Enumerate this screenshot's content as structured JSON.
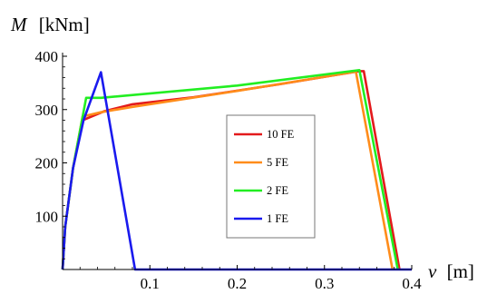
{
  "chart_data": {
    "type": "line",
    "xlabel_symbol": "v",
    "xlabel_unit": "[m]",
    "ylabel_symbol": "M",
    "ylabel_unit": "[kNm]",
    "xlim": [
      0,
      0.4
    ],
    "ylim": [
      0,
      400
    ],
    "x_ticks": [
      {
        "value": 0.1,
        "label": "0.1"
      },
      {
        "value": 0.2,
        "label": "0.2"
      },
      {
        "value": 0.3,
        "label": "0.3"
      },
      {
        "value": 0.4,
        "label": "0.4"
      }
    ],
    "y_ticks": [
      {
        "value": 100,
        "label": "100"
      },
      {
        "value": 200,
        "label": "200"
      },
      {
        "value": 300,
        "label": "300"
      },
      {
        "value": 400,
        "label": "400"
      }
    ],
    "grid": false,
    "legend_position": "center-right",
    "series": [
      {
        "name": "10 FE",
        "color": "#e31a1c",
        "points": [
          [
            0,
            0
          ],
          [
            0.003,
            80
          ],
          [
            0.012,
            190
          ],
          [
            0.023,
            280
          ],
          [
            0.048,
            297
          ],
          [
            0.08,
            310
          ],
          [
            0.15,
            323
          ],
          [
            0.25,
            348
          ],
          [
            0.34,
            372
          ],
          [
            0.345,
            372
          ],
          [
            0.386,
            0
          ]
        ]
      },
      {
        "name": "5 FE",
        "color": "#ff8c1a",
        "points": [
          [
            0,
            0
          ],
          [
            0.003,
            80
          ],
          [
            0.012,
            190
          ],
          [
            0.023,
            287
          ],
          [
            0.044,
            295
          ],
          [
            0.08,
            305
          ],
          [
            0.2,
            335
          ],
          [
            0.336,
            371
          ],
          [
            0.378,
            0
          ]
        ]
      },
      {
        "name": "2 FE",
        "color": "#22ee22",
        "points": [
          [
            0,
            0
          ],
          [
            0.003,
            80
          ],
          [
            0.012,
            190
          ],
          [
            0.027,
            322
          ],
          [
            0.044,
            322
          ],
          [
            0.2,
            345
          ],
          [
            0.34,
            374
          ],
          [
            0.384,
            0
          ]
        ]
      },
      {
        "name": "1 FE",
        "color": "#1a1aee",
        "points": [
          [
            0,
            0
          ],
          [
            0.003,
            80
          ],
          [
            0.012,
            190
          ],
          [
            0.024,
            280
          ],
          [
            0.044,
            370
          ],
          [
            0.083,
            0
          ],
          [
            0.4,
            0
          ]
        ]
      }
    ]
  }
}
